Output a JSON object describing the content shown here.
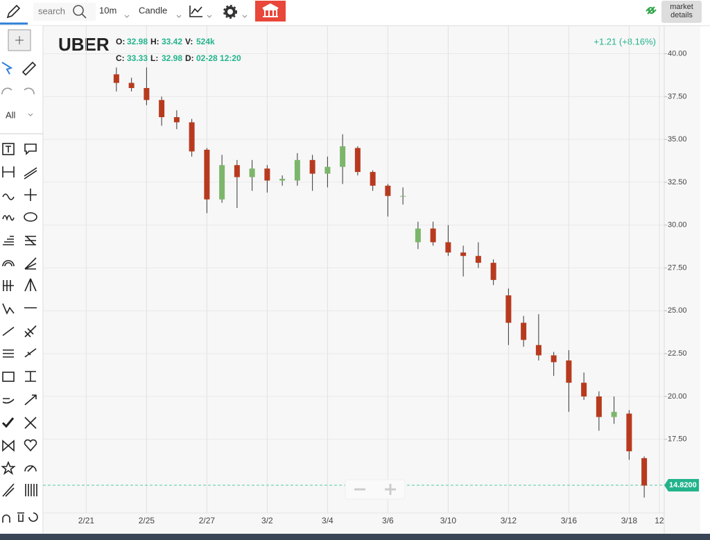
{
  "toolbar": {
    "search": "search",
    "interval": "10m",
    "chart_type": "Candle",
    "market_details": [
      "market",
      "details"
    ]
  },
  "sidebar": {
    "filter": "All"
  },
  "chart_data": {
    "type": "candlestick",
    "symbol": "UBER",
    "ohlc_info": [
      {
        "label": "O:",
        "value": "32.98"
      },
      {
        "label": "H:",
        "value": "33.42"
      },
      {
        "label": "V:",
        "value": "524k"
      },
      {
        "label": "C:",
        "value": "33.33"
      },
      {
        "label": "L:",
        "value": "32.98"
      },
      {
        "label": "D:",
        "value": "02-28 12:20"
      }
    ],
    "change": "+1.21 (+8.16%)",
    "categories": [
      null,
      null,
      "2/21",
      null,
      null,
      null,
      "2/25",
      null,
      null,
      null,
      "2/27",
      null,
      null,
      null,
      "3/2",
      null,
      null,
      null,
      "3/4",
      null,
      null,
      null,
      "3/6",
      null,
      null,
      null,
      "3/10",
      null,
      null,
      null,
      "3/12",
      null,
      null,
      null,
      "3/16",
      null,
      null,
      null,
      "3/18",
      null,
      "12"
    ],
    "open": [
      null,
      null,
      null,
      null,
      38.8,
      38.3,
      38.0,
      37.3,
      36.3,
      36.0,
      34.4,
      31.5,
      33.5,
      32.8,
      33.3,
      32.6,
      32.6,
      33.8,
      33.0,
      33.4,
      34.5,
      33.1,
      32.3,
      31.7,
      29.0,
      29.8,
      29.0,
      28.4,
      28.2,
      27.8,
      25.9,
      24.3,
      23.0,
      22.4,
      22.1,
      20.8,
      20.0,
      18.8,
      19.0,
      16.4,
      null
    ],
    "high": [
      null,
      null,
      null,
      null,
      39.2,
      38.6,
      39.2,
      37.5,
      36.7,
      36.2,
      34.5,
      34.1,
      33.8,
      33.8,
      33.5,
      32.9,
      34.2,
      34.1,
      34.0,
      35.3,
      34.6,
      33.2,
      32.4,
      32.2,
      30.2,
      30.2,
      30.0,
      28.8,
      29.0,
      28.0,
      26.3,
      24.7,
      24.8,
      22.6,
      22.7,
      21.4,
      20.3,
      20.0,
      19.2,
      16.5,
      null
    ],
    "low": [
      null,
      null,
      null,
      null,
      37.8,
      37.8,
      37.0,
      35.8,
      35.6,
      34.0,
      30.7,
      31.3,
      31.0,
      32.0,
      31.9,
      32.3,
      32.3,
      32.0,
      32.2,
      32.4,
      32.9,
      32.0,
      30.5,
      31.2,
      28.6,
      28.8,
      28.2,
      27.0,
      27.5,
      26.5,
      23.0,
      22.9,
      22.1,
      21.2,
      19.1,
      19.8,
      18.0,
      18.4,
      16.3,
      14.1,
      null
    ],
    "close": [
      null,
      null,
      null,
      null,
      38.3,
      38.0,
      37.3,
      36.3,
      36.0,
      34.3,
      31.5,
      33.5,
      32.8,
      33.3,
      32.6,
      32.7,
      33.8,
      33.0,
      33.4,
      34.6,
      33.1,
      32.3,
      31.7,
      31.7,
      29.8,
      29.0,
      28.4,
      28.2,
      27.8,
      26.8,
      24.3,
      23.3,
      22.4,
      22.0,
      20.8,
      20.0,
      18.8,
      19.1,
      16.8,
      14.8,
      null
    ],
    "up_color": "#7cb66b",
    "down_color": "#b83a1e",
    "ylim": [
      13.2,
      41.6
    ],
    "yticks": [
      {
        "value": 17.5,
        "label": "17.50"
      },
      {
        "value": 20,
        "label": "20.00"
      },
      {
        "value": 22.5,
        "label": "22.50"
      },
      {
        "value": 25,
        "label": "25.00"
      },
      {
        "value": 27.5,
        "label": "27.50"
      },
      {
        "value": 30,
        "label": "30.00"
      },
      {
        "value": 32.5,
        "label": "32.50"
      },
      {
        "value": 35,
        "label": "35.00"
      },
      {
        "value": 37.5,
        "label": "37.50"
      },
      {
        "value": 40,
        "label": "40.00"
      }
    ],
    "last_price": {
      "value": 14.82,
      "label": "14.8200"
    },
    "grid": true
  }
}
